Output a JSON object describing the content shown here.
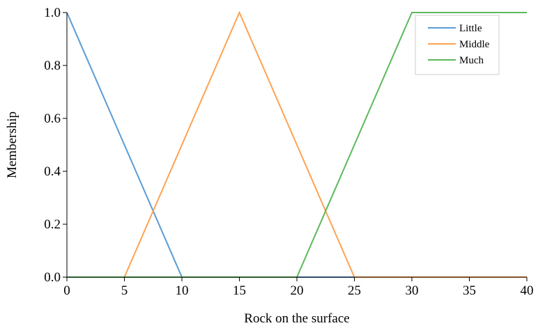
{
  "chart_data": {
    "type": "line",
    "title": "",
    "xlabel": "Rock on the surface",
    "ylabel": "Membership",
    "xlim": [
      0,
      40
    ],
    "ylim": [
      0,
      1
    ],
    "grid": false,
    "legend_position": "top-right",
    "x_ticks": [
      "0",
      "5",
      "10",
      "15",
      "20",
      "25",
      "30",
      "35",
      "40"
    ],
    "y_ticks": [
      "0.0",
      "0.2",
      "0.4",
      "0.6",
      "0.8",
      "1.0"
    ],
    "series": [
      {
        "name": "Little",
        "color": "#5b9bd5",
        "x": [
          0,
          10,
          40
        ],
        "y": [
          1,
          0,
          0
        ]
      },
      {
        "name": "Middle",
        "color": "#ffa252",
        "x": [
          0,
          5,
          15,
          25,
          40
        ],
        "y": [
          0,
          0,
          1,
          0,
          0
        ]
      },
      {
        "name": "Much",
        "color": "#5cb85c",
        "x": [
          0,
          20,
          30,
          40
        ],
        "y": [
          0,
          0,
          1,
          1
        ]
      }
    ]
  }
}
